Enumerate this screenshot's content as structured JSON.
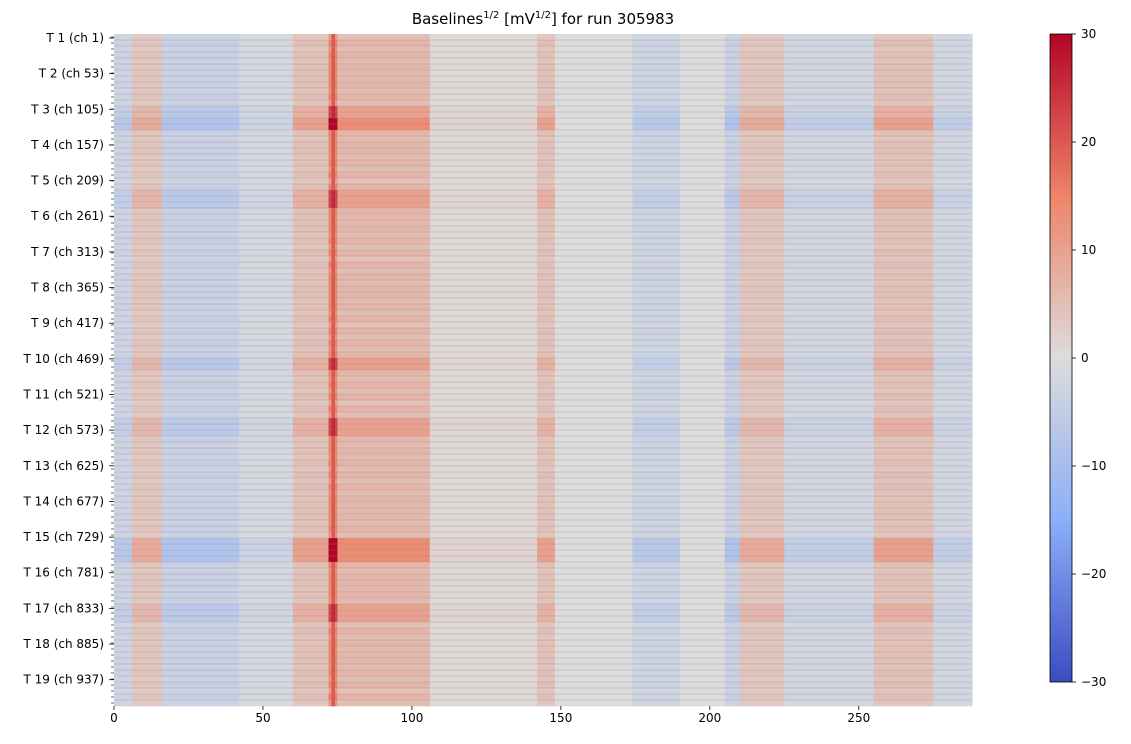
{
  "chart_data": {
    "type": "heatmap",
    "title": {
      "prefix": "Baselines",
      "exp1": "1/2",
      "mid": " [mV",
      "exp2": "1/2",
      "suffix": "] for run 305983"
    },
    "x_range": [
      0,
      288
    ],
    "x_ticks": [
      0,
      50,
      100,
      150,
      200,
      250
    ],
    "n_rows": 112,
    "y_tick_labels": [
      "T 1 (ch 1)",
      "T 2 (ch 53)",
      "T 3 (ch 105)",
      "T 4 (ch 157)",
      "T 5 (ch 209)",
      "T 6 (ch 261)",
      "T 7 (ch 313)",
      "T 8 (ch 365)",
      "T 9 (ch 417)",
      "T 10 (ch 469)",
      "T 11 (ch 521)",
      "T 12 (ch 573)",
      "T 13 (ch 625)",
      "T 14 (ch 677)",
      "T 15 (ch 729)",
      "T 16 (ch 781)",
      "T 17 (ch 833)",
      "T 18 (ch 885)",
      "T 19 (ch 937)"
    ],
    "colorbar": {
      "colormap": "coolwarm",
      "range": [
        -30,
        30
      ],
      "ticks": [
        30,
        20,
        10,
        0,
        -10,
        -20,
        -30
      ]
    },
    "column_pattern": [
      {
        "x": [
          0,
          6
        ],
        "value": -4
      },
      {
        "x": [
          6,
          16
        ],
        "value": 5
      },
      {
        "x": [
          16,
          42
        ],
        "value": -5
      },
      {
        "x": [
          42,
          60
        ],
        "value": -2
      },
      {
        "x": [
          60,
          72
        ],
        "value": 6
      },
      {
        "x": [
          72,
          75
        ],
        "value": 18
      },
      {
        "x": [
          75,
          106
        ],
        "value": 8
      },
      {
        "x": [
          106,
          142
        ],
        "value": 1
      },
      {
        "x": [
          142,
          148
        ],
        "value": 6
      },
      {
        "x": [
          148,
          174
        ],
        "value": 0
      },
      {
        "x": [
          174,
          190
        ],
        "value": -4
      },
      {
        "x": [
          190,
          205
        ],
        "value": 0
      },
      {
        "x": [
          205,
          210
        ],
        "value": -5
      },
      {
        "x": [
          210,
          225
        ],
        "value": 5
      },
      {
        "x": [
          225,
          255
        ],
        "value": -3
      },
      {
        "x": [
          255,
          275
        ],
        "value": 6
      },
      {
        "x": [
          275,
          288
        ],
        "value": -3
      }
    ],
    "strong_rows": [
      14,
      15,
      84,
      85,
      86,
      87
    ],
    "weak_rows": [
      12,
      13,
      26,
      27,
      28,
      54,
      55,
      64,
      65,
      66,
      95,
      96,
      97
    ]
  }
}
